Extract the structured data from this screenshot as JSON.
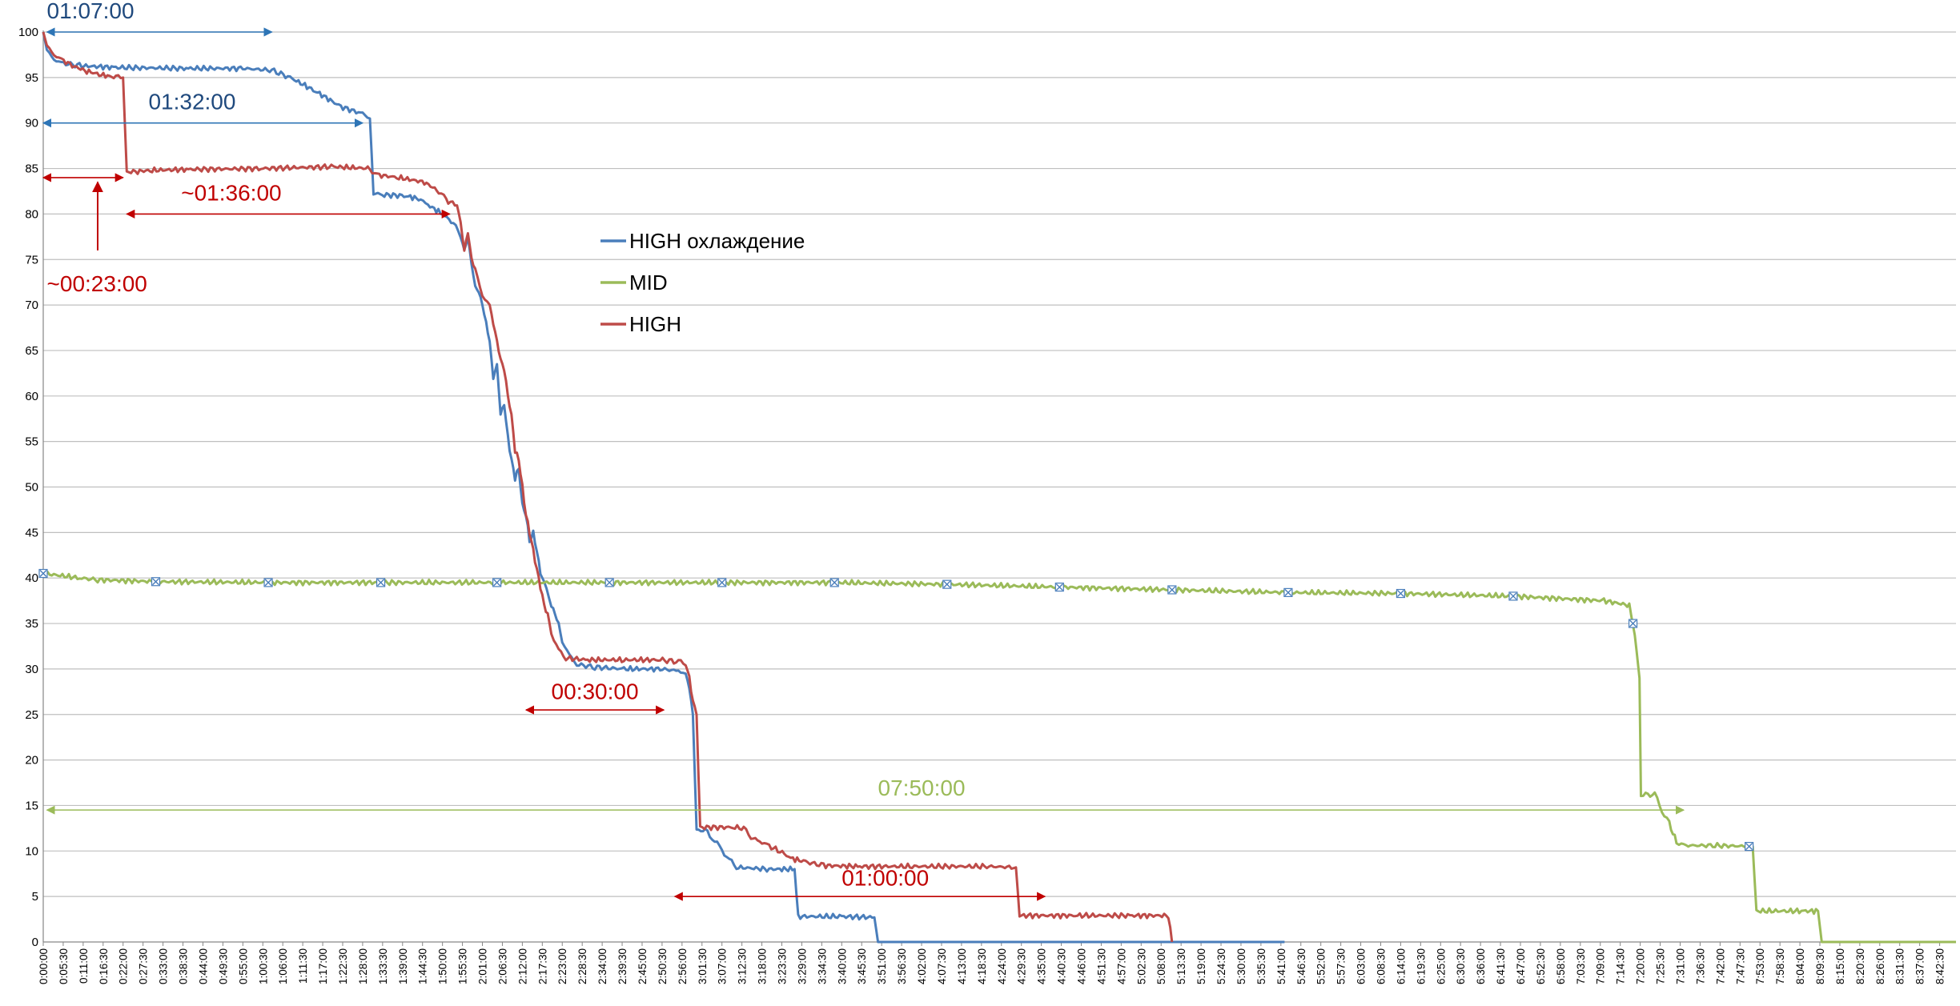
{
  "chart_data": {
    "type": "line",
    "title": "",
    "xlabel": "",
    "ylabel": "",
    "ylim": [
      0,
      100
    ],
    "yticks": [
      0,
      5,
      10,
      15,
      20,
      25,
      30,
      35,
      40,
      45,
      50,
      55,
      60,
      65,
      70,
      75,
      80,
      85,
      90,
      95,
      100
    ],
    "xlim_minutes": [
      0,
      527
    ],
    "xtick_step_minutes": 5.5,
    "grid": "horizontal",
    "legend_position": "center-left",
    "colors": {
      "high_cool": "#4a7ebb",
      "mid": "#9bbb59",
      "high": "#be4b48",
      "axis": "#868686",
      "grid": "#bfbfbf"
    },
    "series": [
      {
        "name": "HIGH охлаждение",
        "color": "#4a7ebb",
        "points": [
          [
            0,
            100
          ],
          [
            1,
            98
          ],
          [
            3,
            97
          ],
          [
            5,
            96.6
          ],
          [
            10,
            96.3
          ],
          [
            20,
            96.1
          ],
          [
            40,
            96
          ],
          [
            55,
            96
          ],
          [
            63,
            95.8
          ],
          [
            68,
            95
          ],
          [
            75,
            93.5
          ],
          [
            82,
            91.8
          ],
          [
            88,
            91
          ],
          [
            90,
            90.5
          ],
          [
            91,
            82.3
          ],
          [
            94,
            82.1
          ],
          [
            100,
            82
          ],
          [
            104,
            81.6
          ],
          [
            106,
            81
          ],
          [
            110,
            80
          ],
          [
            113,
            79
          ],
          [
            115,
            77.5
          ],
          [
            116,
            76
          ],
          [
            117,
            77.5
          ],
          [
            118,
            74.5
          ],
          [
            119,
            72
          ],
          [
            120,
            71.5
          ],
          [
            121,
            70
          ],
          [
            122,
            68
          ],
          [
            123,
            66
          ],
          [
            124,
            62
          ],
          [
            125,
            63.5
          ],
          [
            126,
            58
          ],
          [
            127,
            59
          ],
          [
            128,
            55.5
          ],
          [
            129,
            53
          ],
          [
            130,
            51
          ],
          [
            131,
            52
          ],
          [
            132,
            48
          ],
          [
            133,
            47
          ],
          [
            134,
            44
          ],
          [
            135,
            45
          ],
          [
            136,
            43
          ],
          [
            137,
            40.5
          ],
          [
            138,
            39.5
          ],
          [
            140,
            37
          ],
          [
            141,
            36
          ],
          [
            142,
            35
          ],
          [
            143,
            33
          ],
          [
            145,
            31.5
          ],
          [
            147,
            30.5
          ],
          [
            152,
            30.2
          ],
          [
            160,
            30
          ],
          [
            170,
            30
          ],
          [
            175,
            29.8
          ],
          [
            177,
            29.5
          ],
          [
            178,
            28
          ],
          [
            179,
            25
          ],
          [
            180,
            12.3
          ],
          [
            183,
            12.2
          ],
          [
            185,
            11
          ],
          [
            187,
            10.2
          ],
          [
            189,
            9
          ],
          [
            191,
            8.2
          ],
          [
            200,
            8
          ],
          [
            207,
            8
          ],
          [
            208,
            2.8
          ],
          [
            220,
            2.8
          ],
          [
            229,
            2.7
          ],
          [
            230,
            0
          ],
          [
            250,
            0
          ],
          [
            300,
            0
          ],
          [
            342,
            0
          ]
        ]
      },
      {
        "name": "MID",
        "color": "#9bbb59",
        "points": [
          [
            0,
            40.5
          ],
          [
            10,
            40
          ],
          [
            15,
            39.8
          ],
          [
            31,
            39.6
          ],
          [
            62,
            39.5
          ],
          [
            93,
            39.5
          ],
          [
            125,
            39.5
          ],
          [
            156,
            39.5
          ],
          [
            187,
            39.5
          ],
          [
            218,
            39.5
          ],
          [
            249,
            39.3
          ],
          [
            280,
            39
          ],
          [
            311,
            38.7
          ],
          [
            343,
            38.4
          ],
          [
            374,
            38.3
          ],
          [
            405,
            38
          ],
          [
            430,
            37.5
          ],
          [
            437,
            37
          ],
          [
            438,
            35
          ],
          [
            439,
            32
          ],
          [
            439.8,
            29
          ],
          [
            440.2,
            16.2
          ],
          [
            444,
            16.2
          ],
          [
            446,
            14.5
          ],
          [
            448,
            13
          ],
          [
            449,
            12
          ],
          [
            450,
            11
          ],
          [
            452,
            10.6
          ],
          [
            460,
            10.6
          ],
          [
            471,
            10.5
          ],
          [
            472,
            3.4
          ],
          [
            485,
            3.4
          ],
          [
            489,
            3.4
          ],
          [
            490,
            0
          ],
          [
            500,
            0
          ],
          [
            527,
            0
          ]
        ]
      },
      {
        "name": "HIGH",
        "color": "#be4b48",
        "points": [
          [
            0,
            100
          ],
          [
            1,
            98.5
          ],
          [
            3,
            97.5
          ],
          [
            5,
            97
          ],
          [
            8,
            96.3
          ],
          [
            12,
            95.7
          ],
          [
            16,
            95.3
          ],
          [
            20,
            95
          ],
          [
            22,
            95
          ],
          [
            23,
            84.6
          ],
          [
            26,
            84.7
          ],
          [
            30,
            84.8
          ],
          [
            40,
            84.9
          ],
          [
            60,
            85
          ],
          [
            80,
            85.2
          ],
          [
            90,
            85
          ],
          [
            92,
            84.3
          ],
          [
            98,
            84
          ],
          [
            105,
            83.5
          ],
          [
            109,
            82.5
          ],
          [
            111,
            81.5
          ],
          [
            114,
            81
          ],
          [
            115,
            79
          ],
          [
            116,
            76
          ],
          [
            117,
            78
          ],
          [
            118,
            75
          ],
          [
            119,
            74
          ],
          [
            121,
            71
          ],
          [
            123,
            70
          ],
          [
            124,
            68
          ],
          [
            125,
            66
          ],
          [
            126,
            64
          ],
          [
            127,
            63
          ],
          [
            128,
            60
          ],
          [
            129,
            58
          ],
          [
            130,
            54
          ],
          [
            131,
            53
          ],
          [
            132,
            50
          ],
          [
            133,
            47
          ],
          [
            134,
            45
          ],
          [
            135,
            43
          ],
          [
            136,
            41
          ],
          [
            137,
            39
          ],
          [
            138,
            37
          ],
          [
            139,
            36
          ],
          [
            140,
            34
          ],
          [
            142,
            32
          ],
          [
            144,
            31.2
          ],
          [
            150,
            31
          ],
          [
            160,
            31
          ],
          [
            170,
            31
          ],
          [
            175,
            30.8
          ],
          [
            177,
            30.6
          ],
          [
            178,
            29
          ],
          [
            179,
            26.5
          ],
          [
            180,
            25
          ],
          [
            181,
            12.6
          ],
          [
            190,
            12.6
          ],
          [
            193,
            12.5
          ],
          [
            195,
            11.5
          ],
          [
            198,
            11
          ],
          [
            200,
            10.5
          ],
          [
            203,
            10
          ],
          [
            206,
            9.2
          ],
          [
            210,
            8.8
          ],
          [
            215,
            8.4
          ],
          [
            225,
            8.3
          ],
          [
            240,
            8.3
          ],
          [
            260,
            8.3
          ],
          [
            268,
            8.2
          ],
          [
            269,
            2.9
          ],
          [
            285,
            2.9
          ],
          [
            300,
            2.9
          ],
          [
            310,
            2.9
          ],
          [
            311,
            0
          ]
        ]
      },
      {
        "name": "",
        "color": "#9bbb59",
        "role": "markers",
        "points": [
          [
            0,
            40.5
          ],
          [
            31,
            39.6
          ],
          [
            62,
            39.5
          ],
          [
            93,
            39.5
          ],
          [
            125,
            39.5
          ],
          [
            156,
            39.5
          ],
          [
            187,
            39.5
          ],
          [
            218,
            39.5
          ],
          [
            249,
            39.3
          ],
          [
            280,
            39
          ],
          [
            311,
            38.7
          ],
          [
            343,
            38.4
          ],
          [
            374,
            38.3
          ],
          [
            405,
            38
          ],
          [
            438,
            35
          ],
          [
            470,
            10.5
          ]
        ]
      }
    ],
    "annotations": [
      {
        "text": "01:07:00",
        "color": "#1f497d",
        "y": 100,
        "x_from": 1,
        "x_to": 63,
        "label_x": 1,
        "label_y": 101.5,
        "anchor": "start",
        "arrow": "both"
      },
      {
        "text": "01:32:00",
        "color": "#1f497d",
        "y": 90,
        "x_from": 0,
        "x_to": 88,
        "label_x": 29,
        "label_y": 91.5,
        "anchor": "start",
        "arrow": "both"
      },
      {
        "text": "~01:36:00",
        "color": "#c00000",
        "y": 80,
        "x_from": 23,
        "x_to": 112,
        "label_x": 38,
        "label_y": 81.5,
        "anchor": "start",
        "arrow": "both"
      },
      {
        "text": "~00:23:00",
        "color": "#c00000",
        "y": 84,
        "x_from": 0,
        "x_to": 22,
        "label_x": 1,
        "label_y": 71.5,
        "anchor": "start",
        "arrow": "both"
      },
      {
        "text": "00:30:00",
        "color": "#c00000",
        "y": 25.5,
        "x_from": 133,
        "x_to": 171,
        "label_x": 152,
        "label_y": 26.7,
        "anchor": "middle",
        "arrow": "both"
      },
      {
        "text": "01:00:00",
        "color": "#c00000",
        "y": 5,
        "x_from": 174,
        "x_to": 276,
        "label_x": 232,
        "label_y": 6.2,
        "anchor": "middle",
        "arrow": "both"
      },
      {
        "text": "07:50:00",
        "color": "#9bbb59",
        "y": 14.5,
        "x_from": 1,
        "x_to": 452,
        "label_x": 242,
        "label_y": 16.1,
        "anchor": "middle",
        "arrow": "both"
      }
    ],
    "vertical_arrow": {
      "color": "#c00000",
      "x": 15,
      "y_from": 76,
      "y_to": 83.5
    }
  }
}
